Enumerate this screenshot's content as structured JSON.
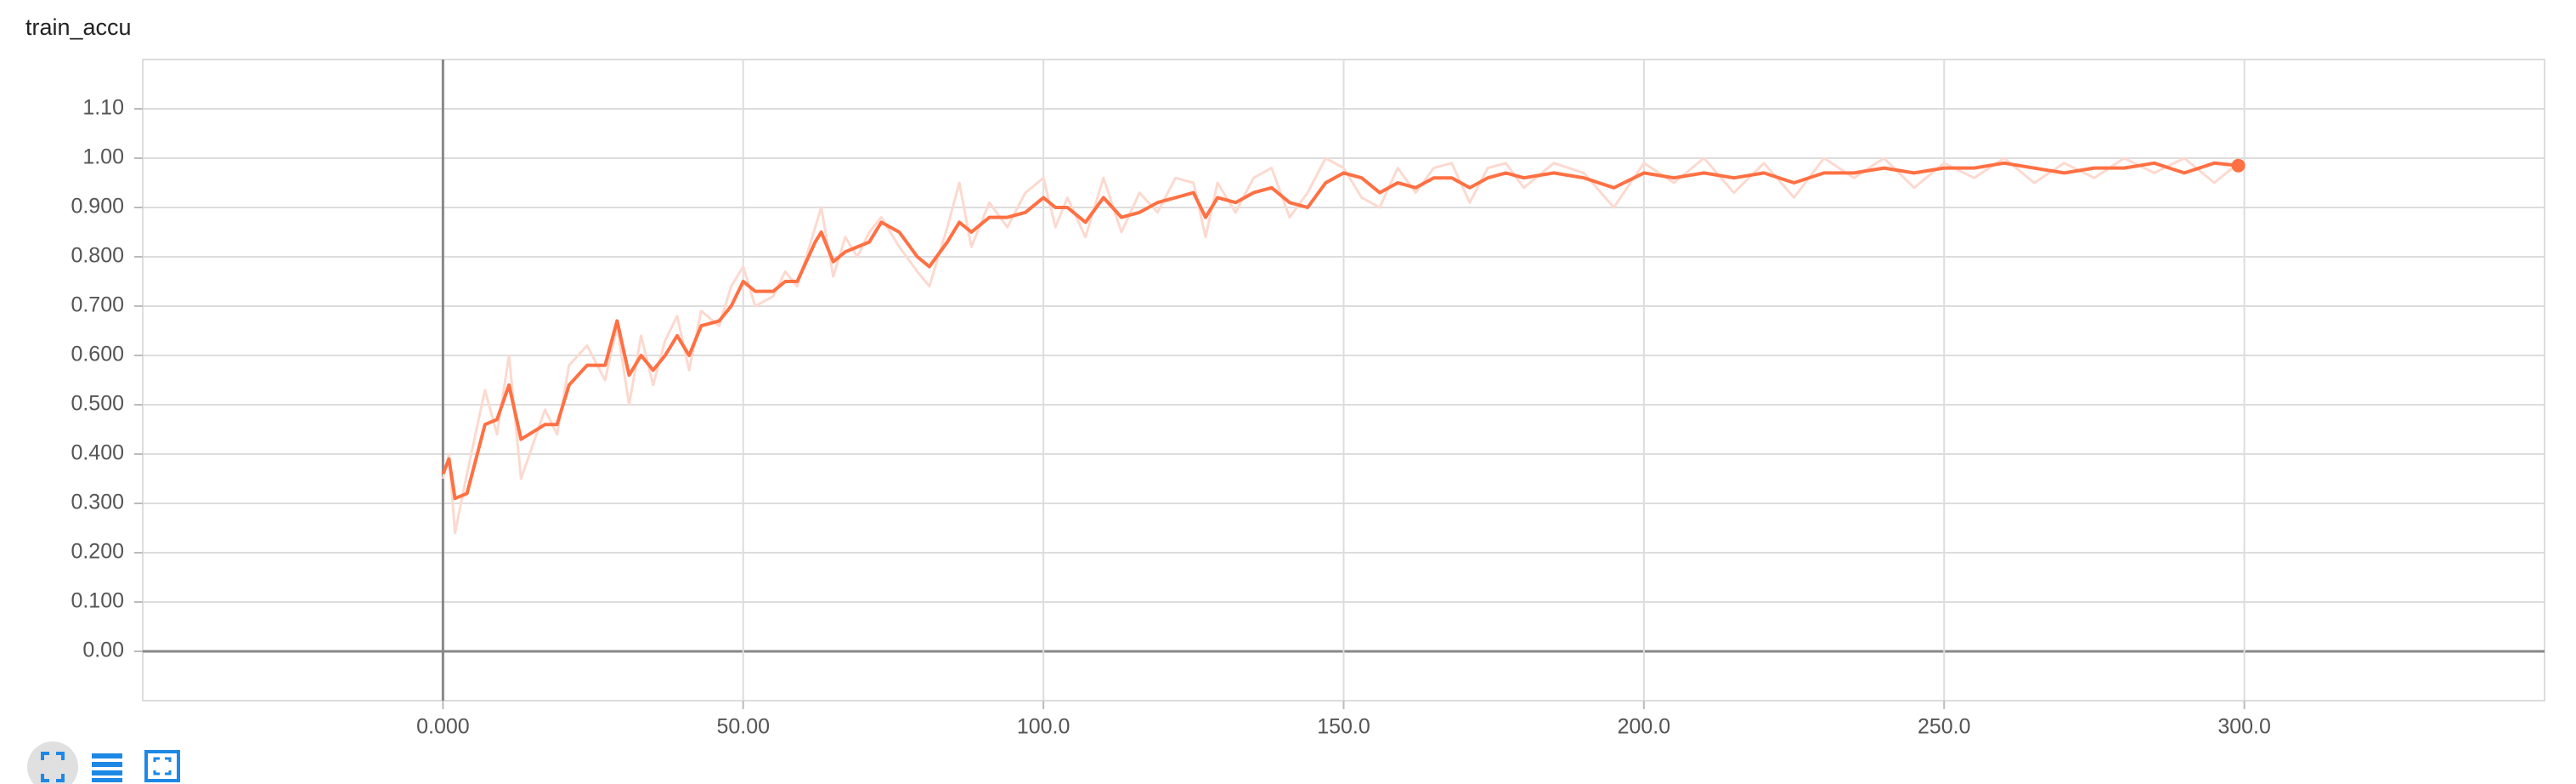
{
  "chart_data": {
    "type": "line",
    "title": "train_accu",
    "x": [
      0,
      1,
      2,
      4,
      7,
      9,
      11,
      13,
      17,
      19,
      21,
      24,
      27,
      29,
      31,
      33,
      35,
      37,
      39,
      41,
      43,
      46,
      48,
      50,
      52,
      55,
      57,
      59,
      62,
      63,
      65,
      67,
      69,
      71,
      73,
      76,
      79,
      81,
      84,
      86,
      88,
      91,
      94,
      97,
      100,
      102,
      104,
      107,
      110,
      113,
      116,
      119,
      122,
      125,
      127,
      129,
      132,
      135,
      138,
      141,
      144,
      147,
      150,
      153,
      156,
      159,
      162,
      165,
      168,
      171,
      174,
      177,
      180,
      185,
      190,
      195,
      200,
      205,
      210,
      215,
      220,
      225,
      230,
      235,
      240,
      245,
      250,
      255,
      260,
      265,
      270,
      275,
      280,
      285,
      290,
      295,
      299
    ],
    "series": [
      {
        "color": "#fcd9cf",
        "values": [
          0.35,
          0.4,
          0.24,
          0.36,
          0.53,
          0.44,
          0.6,
          0.35,
          0.49,
          0.44,
          0.58,
          0.62,
          0.55,
          0.66,
          0.5,
          0.64,
          0.54,
          0.63,
          0.68,
          0.57,
          0.69,
          0.66,
          0.74,
          0.78,
          0.7,
          0.72,
          0.77,
          0.74,
          0.86,
          0.9,
          0.76,
          0.84,
          0.8,
          0.85,
          0.88,
          0.82,
          0.77,
          0.74,
          0.86,
          0.95,
          0.82,
          0.91,
          0.86,
          0.93,
          0.96,
          0.86,
          0.92,
          0.84,
          0.96,
          0.85,
          0.93,
          0.89,
          0.96,
          0.95,
          0.84,
          0.95,
          0.89,
          0.96,
          0.98,
          0.88,
          0.93,
          1.0,
          0.98,
          0.92,
          0.9,
          0.98,
          0.93,
          0.98,
          0.99,
          0.91,
          0.98,
          0.99,
          0.94,
          0.99,
          0.97,
          0.9,
          0.99,
          0.95,
          1.0,
          0.93,
          0.99,
          0.92,
          1.0,
          0.96,
          1.0,
          0.94,
          0.99,
          0.96,
          1.0,
          0.95,
          0.99,
          0.96,
          1.0,
          0.97,
          1.0,
          0.95,
          0.99
        ]
      },
      {
        "color": "#ff7043",
        "values": [
          0.36,
          0.39,
          0.31,
          0.32,
          0.46,
          0.47,
          0.54,
          0.43,
          0.46,
          0.46,
          0.54,
          0.58,
          0.58,
          0.67,
          0.56,
          0.6,
          0.57,
          0.6,
          0.64,
          0.6,
          0.66,
          0.67,
          0.7,
          0.75,
          0.73,
          0.73,
          0.75,
          0.75,
          0.83,
          0.85,
          0.79,
          0.81,
          0.82,
          0.83,
          0.87,
          0.85,
          0.8,
          0.78,
          0.83,
          0.87,
          0.85,
          0.88,
          0.88,
          0.89,
          0.92,
          0.9,
          0.9,
          0.87,
          0.92,
          0.88,
          0.89,
          0.91,
          0.92,
          0.93,
          0.88,
          0.92,
          0.91,
          0.93,
          0.94,
          0.91,
          0.9,
          0.95,
          0.97,
          0.96,
          0.93,
          0.95,
          0.94,
          0.96,
          0.96,
          0.94,
          0.96,
          0.97,
          0.96,
          0.97,
          0.96,
          0.94,
          0.97,
          0.96,
          0.97,
          0.96,
          0.97,
          0.95,
          0.97,
          0.97,
          0.98,
          0.97,
          0.98,
          0.98,
          0.99,
          0.98,
          0.97,
          0.98,
          0.98,
          0.99,
          0.97,
          0.99,
          0.985
        ]
      }
    ],
    "xlim": [
      -50,
      350
    ],
    "xticks": [
      {
        "value": 0,
        "label": "0.000"
      },
      {
        "value": 50,
        "label": "50.00"
      },
      {
        "value": 100,
        "label": "100.0"
      },
      {
        "value": 150,
        "label": "150.0"
      },
      {
        "value": 200,
        "label": "200.0"
      },
      {
        "value": 250,
        "label": "250.0"
      },
      {
        "value": 300,
        "label": "300.0"
      }
    ],
    "ylim": [
      -0.1,
      1.2
    ],
    "yticks": [
      {
        "value": 0,
        "label": "0.00"
      },
      {
        "value": 0.1,
        "label": "0.100"
      },
      {
        "value": 0.2,
        "label": "0.200"
      },
      {
        "value": 0.3,
        "label": "0.300"
      },
      {
        "value": 0.4,
        "label": "0.400"
      },
      {
        "value": 0.5,
        "label": "0.500"
      },
      {
        "value": 0.6,
        "label": "0.600"
      },
      {
        "value": 0.7,
        "label": "0.700"
      },
      {
        "value": 0.8,
        "label": "0.800"
      },
      {
        "value": 0.9,
        "label": "0.900"
      },
      {
        "value": 1.0,
        "label": "1.00"
      },
      {
        "value": 1.1,
        "label": "1.10"
      }
    ],
    "grid": true
  }
}
